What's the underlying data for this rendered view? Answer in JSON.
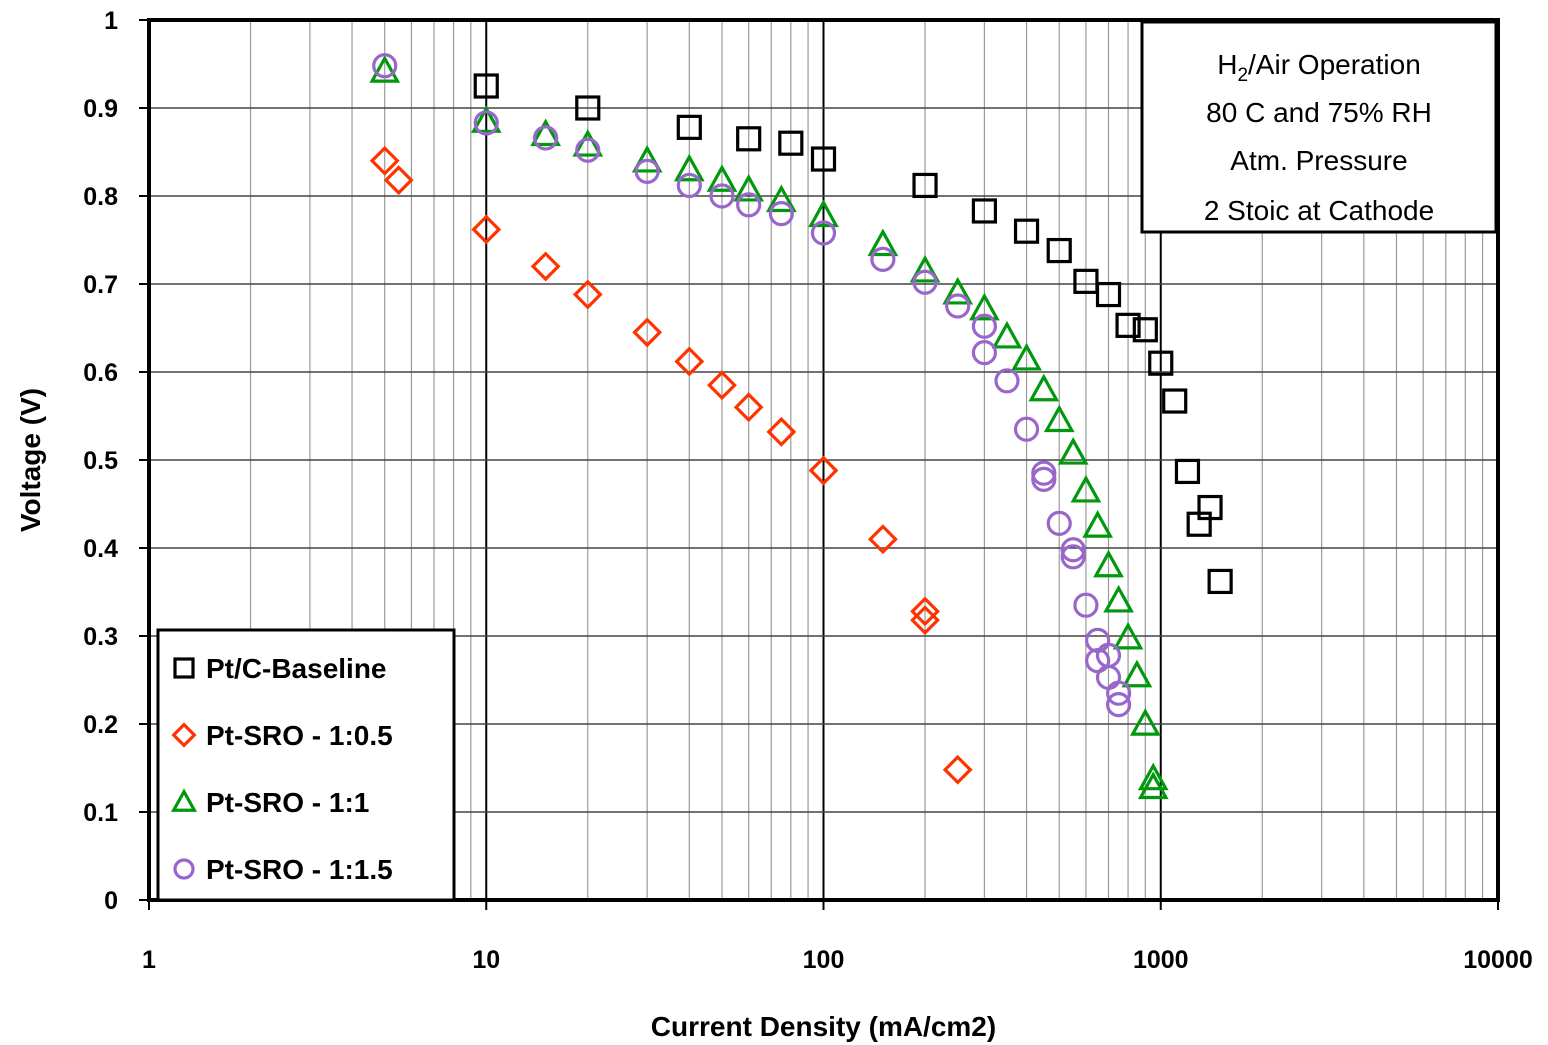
{
  "chart_data": {
    "type": "scatter",
    "title": "",
    "xlabel": "Current Density (mA/cm2)",
    "ylabel": "Voltage (V)",
    "xscale": "log",
    "xlim": [
      1,
      10000
    ],
    "ylim": [
      0,
      1
    ],
    "x_ticks": [
      "1",
      "10",
      "100",
      "1000",
      "10000"
    ],
    "y_ticks": [
      "0",
      "0.1",
      "0.2",
      "0.3",
      "0.4",
      "0.5",
      "0.6",
      "0.7",
      "0.8",
      "0.9",
      "1"
    ],
    "grid": true,
    "legend_position": "bottom-left",
    "annotation": {
      "position": "top-right",
      "lines": [
        "H2/Air Operation",
        "80 C and 75% RH",
        "Atm. Pressure",
        "2 Stoic at Cathode"
      ]
    },
    "series": [
      {
        "name": "Pt/C-Baseline",
        "marker": "square",
        "color": "#000000",
        "points": [
          [
            10,
            0.925
          ],
          [
            20,
            0.9
          ],
          [
            40,
            0.878
          ],
          [
            60,
            0.865
          ],
          [
            80,
            0.86
          ],
          [
            100,
            0.842
          ],
          [
            200,
            0.812
          ],
          [
            300,
            0.783
          ],
          [
            400,
            0.76
          ],
          [
            500,
            0.738
          ],
          [
            600,
            0.703
          ],
          [
            700,
            0.688
          ],
          [
            800,
            0.653
          ],
          [
            900,
            0.648
          ],
          [
            1000,
            0.61
          ],
          [
            1100,
            0.567
          ],
          [
            1200,
            0.487
          ],
          [
            1300,
            0.427
          ],
          [
            1400,
            0.446
          ],
          [
            1500,
            0.362
          ]
        ]
      },
      {
        "name": "Pt-SRO - 1:0.5",
        "marker": "diamond",
        "color": "#ff3300",
        "points": [
          [
            5,
            0.84
          ],
          [
            5.5,
            0.818
          ],
          [
            10,
            0.762
          ],
          [
            15,
            0.72
          ],
          [
            20,
            0.688
          ],
          [
            30,
            0.645
          ],
          [
            40,
            0.612
          ],
          [
            50,
            0.585
          ],
          [
            60,
            0.56
          ],
          [
            75,
            0.532
          ],
          [
            100,
            0.488
          ],
          [
            150,
            0.41
          ],
          [
            200,
            0.328
          ],
          [
            200,
            0.318
          ],
          [
            250,
            0.148
          ]
        ]
      },
      {
        "name": "Pt-SRO - 1:1",
        "marker": "triangle",
        "color": "#00990d",
        "points": [
          [
            5,
            0.942
          ],
          [
            10,
            0.885
          ],
          [
            15,
            0.87
          ],
          [
            20,
            0.858
          ],
          [
            30,
            0.84
          ],
          [
            40,
            0.83
          ],
          [
            50,
            0.818
          ],
          [
            60,
            0.807
          ],
          [
            75,
            0.795
          ],
          [
            100,
            0.778
          ],
          [
            150,
            0.745
          ],
          [
            200,
            0.715
          ],
          [
            250,
            0.69
          ],
          [
            300,
            0.672
          ],
          [
            350,
            0.64
          ],
          [
            400,
            0.615
          ],
          [
            450,
            0.58
          ],
          [
            500,
            0.545
          ],
          [
            550,
            0.508
          ],
          [
            600,
            0.465
          ],
          [
            650,
            0.425
          ],
          [
            700,
            0.38
          ],
          [
            750,
            0.34
          ],
          [
            800,
            0.298
          ],
          [
            850,
            0.255
          ],
          [
            900,
            0.2
          ],
          [
            950,
            0.138
          ],
          [
            950,
            0.128
          ]
        ]
      },
      {
        "name": "Pt-SRO - 1:1.5",
        "marker": "circle",
        "color": "#9966cc",
        "points": [
          [
            5,
            0.948
          ],
          [
            10,
            0.883
          ],
          [
            15,
            0.866
          ],
          [
            20,
            0.852
          ],
          [
            30,
            0.828
          ],
          [
            40,
            0.812
          ],
          [
            50,
            0.8
          ],
          [
            60,
            0.79
          ],
          [
            75,
            0.78
          ],
          [
            100,
            0.758
          ],
          [
            150,
            0.728
          ],
          [
            200,
            0.702
          ],
          [
            250,
            0.675
          ],
          [
            300,
            0.652
          ],
          [
            300,
            0.622
          ],
          [
            350,
            0.59
          ],
          [
            400,
            0.535
          ],
          [
            450,
            0.485
          ],
          [
            450,
            0.478
          ],
          [
            500,
            0.428
          ],
          [
            550,
            0.398
          ],
          [
            550,
            0.39
          ],
          [
            600,
            0.335
          ],
          [
            650,
            0.295
          ],
          [
            650,
            0.272
          ],
          [
            700,
            0.278
          ],
          [
            700,
            0.253
          ],
          [
            750,
            0.235
          ],
          [
            750,
            0.222
          ]
        ]
      }
    ]
  }
}
